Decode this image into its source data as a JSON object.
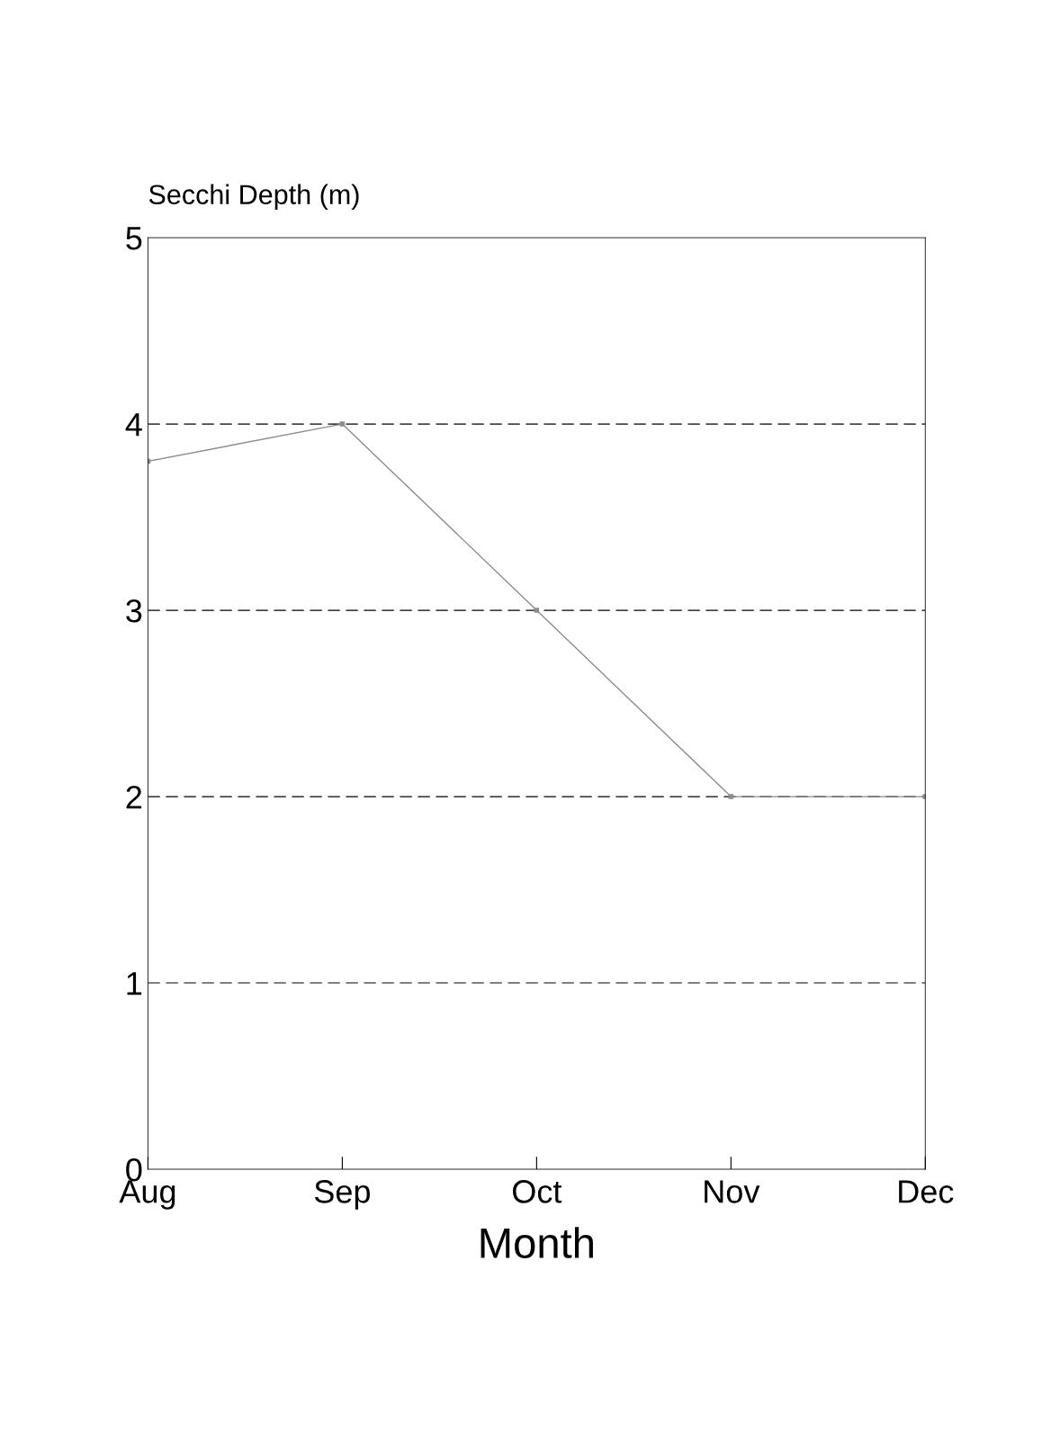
{
  "chart_data": {
    "type": "line",
    "ylabel": "Secchi Depth (m)",
    "xlabel": "Month",
    "categories": [
      "Aug",
      "Sep",
      "Oct",
      "Nov",
      "Dec"
    ],
    "series": [
      {
        "color": "#8c8c8c",
        "values": [
          3.8,
          4.0,
          3.0,
          2.0,
          2.0
        ]
      }
    ],
    "ylim": [
      0,
      5
    ],
    "yticks": [
      0,
      1,
      2,
      3,
      4,
      5
    ],
    "grid": "y",
    "marker": "square",
    "line_style": "solid"
  }
}
